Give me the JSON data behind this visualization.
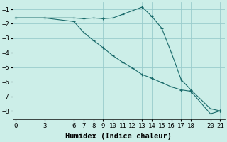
{
  "xlabel": "Humidex (Indice chaleur)",
  "bg_color": "#cceee8",
  "grid_color": "#99cccc",
  "line_color": "#1a6b6b",
  "series1_x": [
    0,
    3,
    6,
    7,
    8,
    9,
    10,
    11,
    12,
    13,
    14,
    15,
    16,
    17,
    18,
    20,
    21
  ],
  "series1_y": [
    -1.6,
    -1.6,
    -1.6,
    -1.65,
    -1.6,
    -1.65,
    -1.6,
    -1.35,
    -1.1,
    -0.85,
    -1.5,
    -2.3,
    -4.0,
    -5.85,
    -6.55,
    -7.85,
    -8.0
  ],
  "series2_x": [
    0,
    3,
    6,
    7,
    8,
    9,
    10,
    11,
    12,
    13,
    14,
    15,
    16,
    17,
    18,
    20,
    21
  ],
  "series2_y": [
    -1.6,
    -1.6,
    -1.85,
    -2.6,
    -3.15,
    -3.65,
    -4.2,
    -4.65,
    -5.05,
    -5.5,
    -5.75,
    -6.05,
    -6.35,
    -6.55,
    -6.65,
    -8.2,
    -8.0
  ],
  "xlim": [
    -0.3,
    21.5
  ],
  "ylim": [
    -8.6,
    -0.5
  ],
  "xticks": [
    0,
    3,
    6,
    7,
    8,
    9,
    10,
    11,
    12,
    13,
    14,
    15,
    16,
    17,
    18,
    20,
    21
  ],
  "yticks": [
    -1,
    -2,
    -3,
    -4,
    -5,
    -6,
    -7,
    -8
  ],
  "marker": "+",
  "markersize": 3,
  "linewidth": 0.8,
  "xlabel_fontsize": 7.5,
  "tick_fontsize": 6.5
}
